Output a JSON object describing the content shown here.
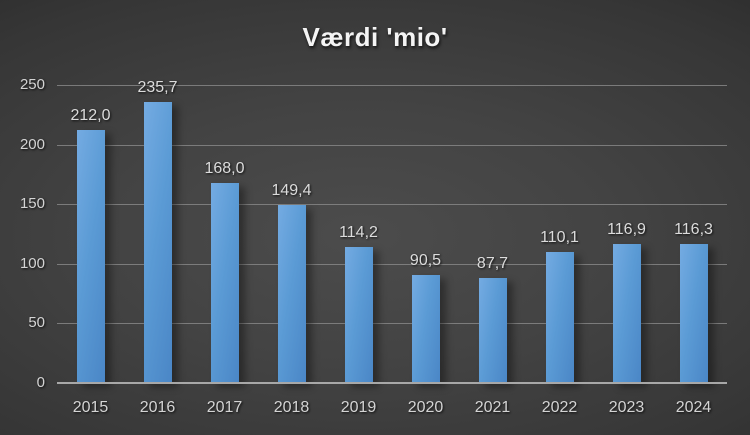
{
  "chart_data": {
    "type": "bar",
    "title": "Værdi 'mio'",
    "categories": [
      "2015",
      "2016",
      "2017",
      "2018",
      "2019",
      "2020",
      "2021",
      "2022",
      "2023",
      "2024"
    ],
    "values": [
      212.0,
      235.7,
      168.0,
      149.4,
      114.2,
      90.5,
      87.7,
      110.1,
      116.9,
      116.3
    ],
    "value_labels": [
      "212,0",
      "235,7",
      "168,0",
      "149,4",
      "114,2",
      "90,5",
      "87,7",
      "110,1",
      "116,9",
      "116,3"
    ],
    "xlabel": "",
    "ylabel": "",
    "ylim": [
      0,
      250
    ],
    "ytick_step": 50,
    "yticks": [
      "0",
      "50",
      "100",
      "150",
      "200",
      "250"
    ],
    "grid": "horizontal",
    "legend_position": "none",
    "decimal_separator": ",",
    "colors": {
      "bar": "#5b9bd5",
      "bar_light": "#74abe2",
      "bar_dark": "#4a86c6",
      "background_center": "#4c4c4c",
      "background_edge": "#212121",
      "gridline": "#868686",
      "axis_line": "#a8a8a8",
      "text": "#d4d4d4",
      "title_text": "#f4f4f4"
    }
  }
}
